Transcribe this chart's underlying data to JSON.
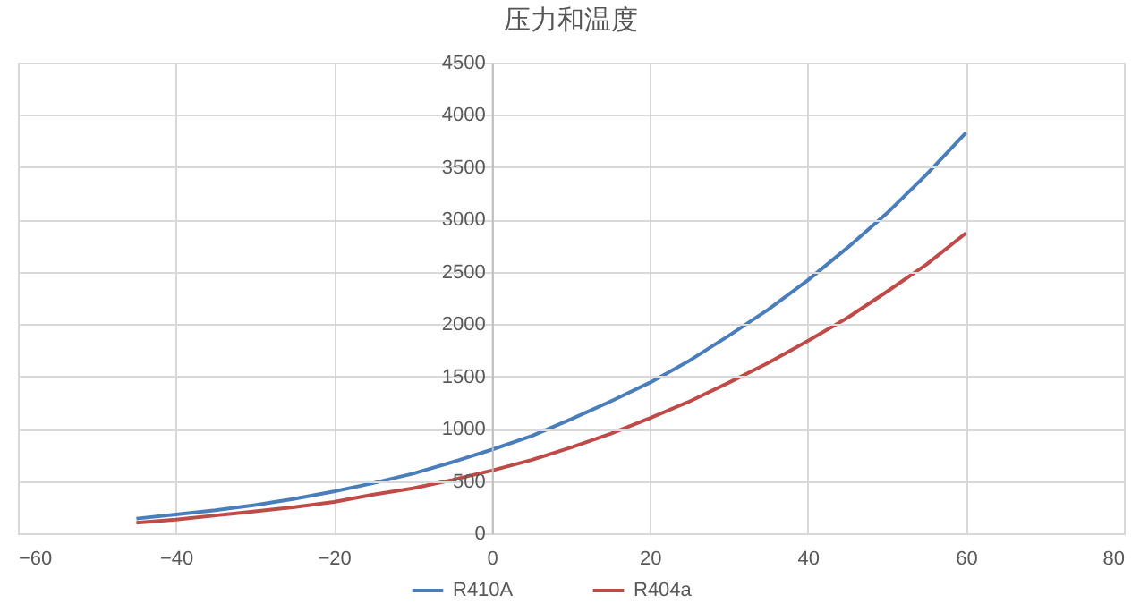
{
  "chart_data": {
    "type": "line",
    "title": "压力和温度",
    "xlim": [
      -60,
      80
    ],
    "xticks": [
      -60,
      -40,
      -20,
      0,
      20,
      40,
      60,
      80
    ],
    "ylim": [
      0,
      4500
    ],
    "yticks": [
      0,
      500,
      1000,
      1500,
      2000,
      2500,
      3000,
      3500,
      4000,
      4500
    ],
    "grid": true,
    "legend": "bottom",
    "marker": "none",
    "line_style": "solid",
    "x": [
      -45,
      -40,
      -35,
      -30,
      -25,
      -20,
      -15,
      -10,
      -5,
      0,
      5,
      10,
      15,
      20,
      25,
      30,
      35,
      40,
      45,
      50,
      55,
      60
    ],
    "series": [
      {
        "name": "R410A",
        "color": "#4a7ebb",
        "values": [
          140,
          180,
          220,
          270,
          330,
          400,
          480,
          570,
          680,
          800,
          930,
          1090,
          1260,
          1440,
          1650,
          1890,
          2140,
          2420,
          2730,
          3060,
          3430,
          3830
        ]
      },
      {
        "name": "R404a",
        "color": "#be4b48",
        "values": [
          100,
          130,
          170,
          210,
          250,
          300,
          370,
          430,
          510,
          600,
          700,
          820,
          950,
          1100,
          1260,
          1440,
          1630,
          1840,
          2060,
          2310,
          2570,
          2870
        ]
      }
    ]
  }
}
